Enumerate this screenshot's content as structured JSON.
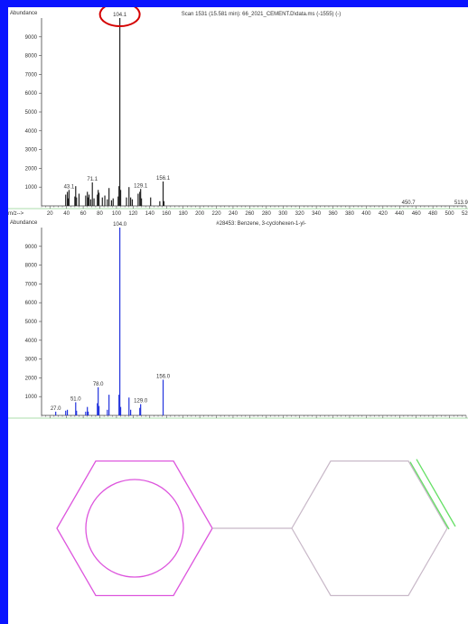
{
  "chart_data": [
    {
      "type": "bar",
      "title": "Scan 1531 (15.581 min): 66_2021_CEMENT.D\\data.ms (-1555) (-)",
      "ylabel": "Abundance",
      "xlabel": "m/z-->",
      "xlim": [
        10,
        520
      ],
      "ylim": [
        0,
        10000
      ],
      "xticks": [
        20,
        40,
        60,
        80,
        100,
        120,
        140,
        160,
        180,
        200,
        220,
        240,
        260,
        280,
        300,
        320,
        340,
        360,
        380,
        400,
        420,
        440,
        460,
        480,
        500,
        520
      ],
      "yticks": [
        1000,
        2000,
        3000,
        4000,
        5000,
        6000,
        7000,
        8000,
        9000
      ],
      "color": "#222222",
      "x": [
        39,
        41,
        42,
        43,
        50,
        51,
        52,
        55,
        63,
        65,
        66,
        67,
        69,
        71,
        73,
        77,
        78,
        79,
        83,
        86,
        89,
        91,
        94,
        96,
        102,
        103,
        104,
        105,
        112,
        115,
        117,
        119,
        126,
        128,
        129,
        130,
        141,
        152,
        156,
        157
      ],
      "values": [
        600,
        750,
        400,
        850,
        500,
        1050,
        450,
        650,
        550,
        750,
        450,
        600,
        350,
        1250,
        400,
        600,
        850,
        700,
        450,
        550,
        350,
        950,
        300,
        400,
        500,
        1050,
        10000,
        850,
        450,
        1000,
        450,
        350,
        650,
        750,
        900,
        400,
        450,
        250,
        1300,
        250
      ],
      "annotations": [
        {
          "x": 43,
          "y": 850,
          "label": "43.1"
        },
        {
          "x": 71,
          "y": 1250,
          "label": "71.1"
        },
        {
          "x": 104,
          "y": 10000,
          "label": "104.1"
        },
        {
          "x": 129,
          "y": 900,
          "label": "129.1"
        },
        {
          "x": 156,
          "y": 1300,
          "label": "156.1"
        },
        {
          "x": 450.7,
          "y": 0,
          "label": "450.7"
        },
        {
          "x": 513.9,
          "y": 0,
          "label": "513.9"
        }
      ],
      "highlight": {
        "label": "104.1",
        "color": "#d40000"
      }
    },
    {
      "type": "bar",
      "title": "#28453: Benzene, 3-cyclohexen-1-yl-",
      "ylabel": "Abundance",
      "xlabel": "m/z-->",
      "xlim": [
        10,
        520
      ],
      "ylim": [
        0,
        10000
      ],
      "xticks": [
        20,
        40,
        60,
        80,
        100,
        120,
        140,
        160,
        180,
        200,
        220,
        240,
        260,
        280,
        300,
        320,
        340,
        360,
        380,
        400,
        420,
        440,
        460,
        480,
        500,
        520
      ],
      "yticks": [
        1000,
        2000,
        3000,
        4000,
        5000,
        6000,
        7000,
        8000,
        9000
      ],
      "color": "#2233dd",
      "x": [
        27,
        39,
        41,
        51,
        52,
        63,
        65,
        66,
        77,
        78,
        79,
        89,
        91,
        103,
        104,
        105,
        115,
        117,
        128,
        129,
        156
      ],
      "values": [
        200,
        250,
        300,
        700,
        250,
        200,
        450,
        200,
        650,
        1500,
        500,
        300,
        1100,
        1100,
        10000,
        450,
        950,
        300,
        400,
        600,
        1900
      ],
      "annotations": [
        {
          "x": 27,
          "y": 200,
          "label": "27.0"
        },
        {
          "x": 51,
          "y": 700,
          "label": "51.0"
        },
        {
          "x": 78,
          "y": 1500,
          "label": "78.0"
        },
        {
          "x": 104,
          "y": 10000,
          "label": "104.0"
        },
        {
          "x": 129,
          "y": 600,
          "label": "129.0"
        },
        {
          "x": 156,
          "y": 1900,
          "label": "156.0"
        }
      ]
    }
  ],
  "structure": {
    "ring1_color": "#dd55dd",
    "ring2_color": "#c8b8c8",
    "double_bond_color": "#66e066"
  }
}
